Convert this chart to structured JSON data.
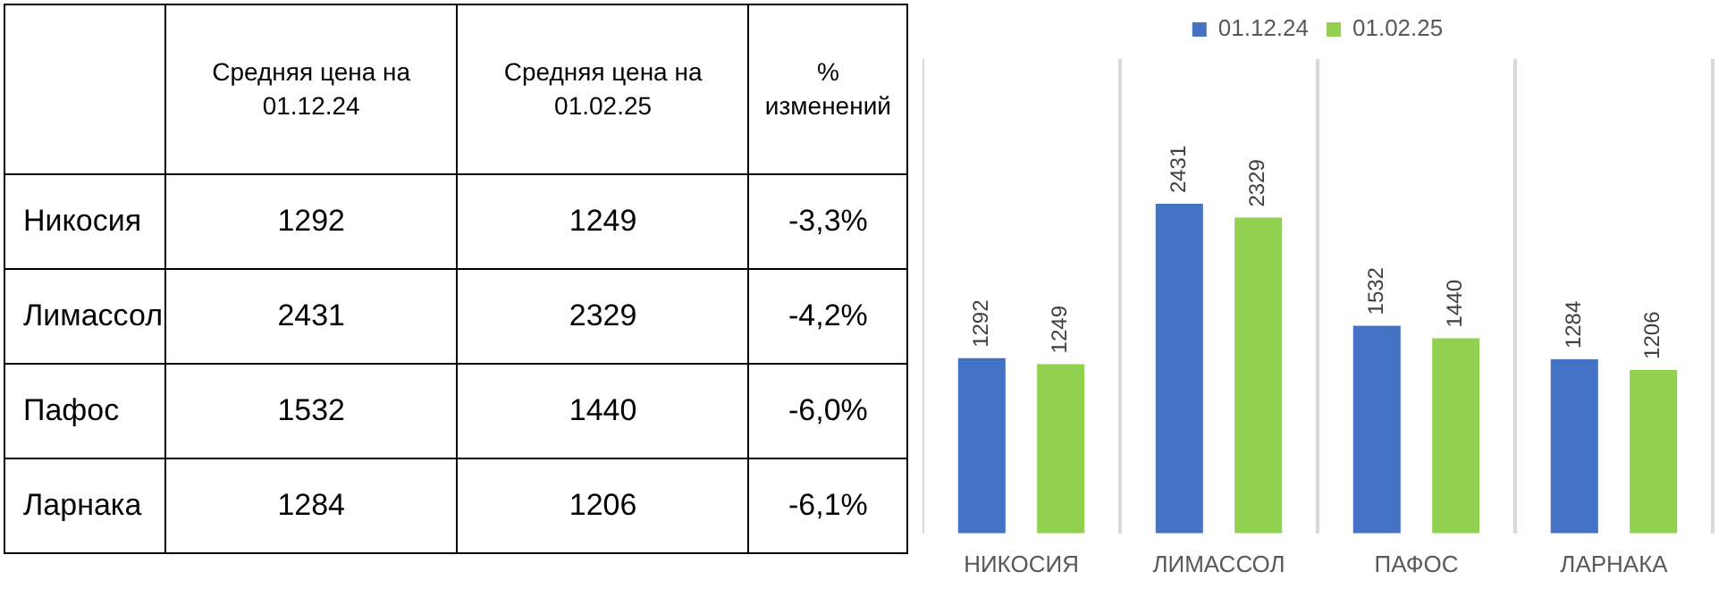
{
  "chart_data": [
    {
      "type": "other",
      "categories": [
        "Никосия",
        "Лимассол",
        "Пафос",
        "Ларнака"
      ],
      "series": [
        {
          "name": "Средняя цена на 01.12.24",
          "values": [
            1292,
            2431,
            1532,
            1284
          ],
          "value_labels": [
            "1292",
            "2431",
            "1532",
            "1284"
          ]
        },
        {
          "name": "Средняя цена на 01.02.25",
          "values": [
            1249,
            2329,
            1440,
            1206
          ],
          "value_labels": [
            "1249",
            "2329",
            "1440",
            "1206"
          ]
        },
        {
          "name": "% изменений",
          "values": [
            -3.3,
            -4.2,
            -6.0,
            -6.1
          ],
          "value_labels": [
            "-3,3%",
            "-4,2%",
            "-6,0%",
            "-6,1%"
          ]
        }
      ]
    },
    {
      "type": "bar",
      "categories": [
        "НИКОСИЯ",
        "ЛИМАССОЛ",
        "ПАФОС",
        "ЛАРНАКА"
      ],
      "series": [
        {
          "name": "01.12.24",
          "color": "#4472c4",
          "values": [
            1292,
            2431,
            1532,
            1284
          ]
        },
        {
          "name": "01.02.25",
          "color": "#92d050",
          "values": [
            1249,
            2329,
            1440,
            1206
          ]
        }
      ],
      "data_labels": true,
      "grid": "x",
      "legend": "top",
      "tick_labels": "x"
    }
  ]
}
